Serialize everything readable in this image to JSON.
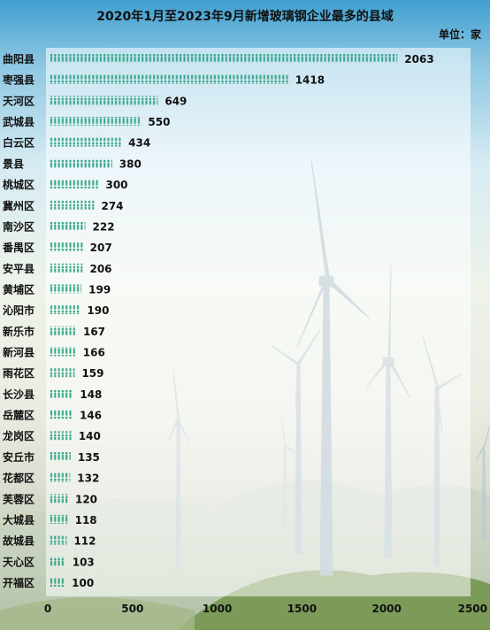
{
  "chart_data": {
    "type": "bar",
    "orientation": "horizontal",
    "title": "2020年1月至2023年9月新增玻璃钢企业最多的县域",
    "unit_label": "单位：家",
    "categories": [
      "曲阳县",
      "枣强县",
      "天河区",
      "武城县",
      "白云区",
      "景县",
      "桃城区",
      "冀州区",
      "南沙区",
      "番禺区",
      "安平县",
      "黄埔区",
      "沁阳市",
      "新乐市",
      "新河县",
      "雨花区",
      "长沙县",
      "岳麓区",
      "龙岗区",
      "安丘市",
      "花都区",
      "芙蓉区",
      "大城县",
      "故城县",
      "天心区",
      "开福区"
    ],
    "values": [
      2063,
      1418,
      649,
      550,
      434,
      380,
      300,
      274,
      222,
      207,
      206,
      199,
      190,
      167,
      166,
      159,
      148,
      146,
      140,
      135,
      132,
      120,
      118,
      112,
      103,
      100
    ],
    "xlim": [
      0,
      2500
    ],
    "xticks": [
      0,
      500,
      1000,
      1500,
      2000,
      2500
    ],
    "bar_color": "#3aa88a",
    "grid": false,
    "bar_style": "pictograph"
  }
}
